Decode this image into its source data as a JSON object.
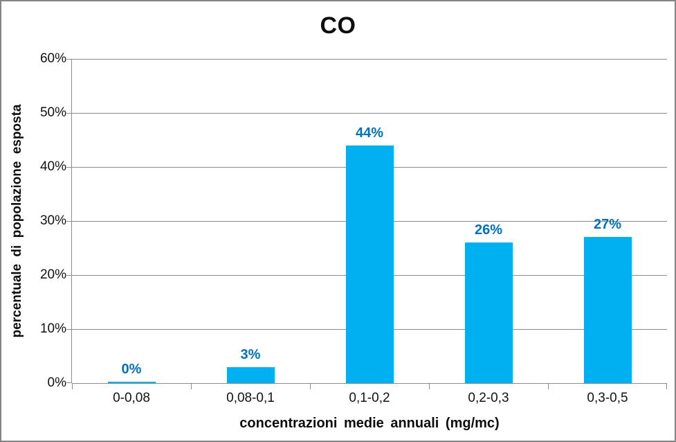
{
  "chart": {
    "title": "CO",
    "y_axis_title": "percentuale di popolazione esposta",
    "x_axis_title": "concentrazioni medie annuali (mg/mc)"
  },
  "chart_data": {
    "type": "bar",
    "title": "CO",
    "categories": [
      "0-0,08",
      "0,08-0,1",
      "0,1-0,2",
      "0,2-0,3",
      "0,3-0,5"
    ],
    "values": [
      0,
      3,
      44,
      26,
      27
    ],
    "data_labels": [
      "0%",
      "3%",
      "44%",
      "26%",
      "27%"
    ],
    "xlabel": "concentrazioni medie annuali (mg/mc)",
    "ylabel": "percentuale di popolazione esposta",
    "ylim": [
      0,
      60
    ],
    "ytick_step": 10,
    "ytick_labels": [
      "0%",
      "10%",
      "20%",
      "30%",
      "40%",
      "50%",
      "60%"
    ],
    "grid": true,
    "legend": false,
    "colors": {
      "bar_fill": "#00B0F0",
      "data_label": "#0070C0",
      "axis_line": "#8E8A87",
      "gridline": "#8E8A87",
      "text": "#121212",
      "title": "#0D0D0D",
      "frame_border": "#848484",
      "background": "#FFFFFF"
    }
  }
}
